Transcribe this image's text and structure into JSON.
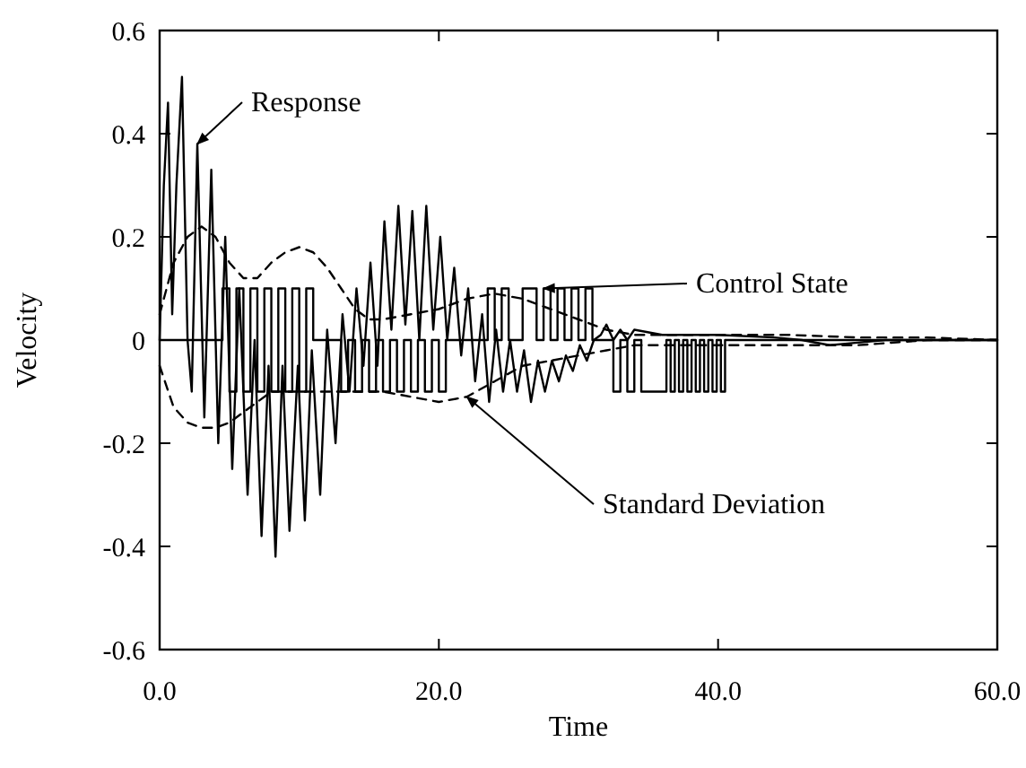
{
  "chart_data": {
    "type": "line",
    "xlabel": "Time",
    "ylabel": "Velocity",
    "xlim": [
      0,
      60
    ],
    "ylim": [
      -0.6,
      0.6
    ],
    "xticks": [
      {
        "value": 0,
        "label": "0.0"
      },
      {
        "value": 20,
        "label": "20.0"
      },
      {
        "value": 40,
        "label": "40.0"
      },
      {
        "value": 60,
        "label": "60.0"
      }
    ],
    "yticks": [
      -0.6,
      -0.4,
      -0.2,
      0,
      0.2,
      0.4,
      0.6
    ],
    "legend": "top",
    "series": [
      {
        "name": "Response",
        "color": "#000000",
        "line_style": "solid",
        "x": [
          0,
          0.3,
          0.6,
          0.9,
          1.2,
          1.6,
          2.0,
          2.3,
          2.7,
          3.2,
          3.7,
          4.2,
          4.7,
          5.2,
          5.7,
          6.3,
          6.8,
          7.3,
          7.8,
          8.3,
          8.8,
          9.3,
          9.9,
          10.4,
          10.9,
          11.5,
          12.0,
          12.6,
          13.1,
          13.6,
          14.1,
          14.6,
          15.1,
          15.6,
          16.1,
          16.6,
          17.1,
          17.6,
          18.1,
          18.6,
          19.1,
          19.6,
          20.1,
          20.6,
          21.1,
          21.6,
          22.1,
          22.6,
          23.1,
          23.6,
          24.1,
          24.6,
          25.1,
          25.6,
          26.1,
          26.6,
          27.1,
          27.6,
          28.1,
          28.6,
          29.1,
          29.6,
          30.1,
          30.6,
          31.1,
          31.6,
          32.0,
          32.5,
          33.0,
          33.5,
          34,
          36,
          40,
          44,
          46,
          48,
          50,
          52,
          56,
          60
        ],
        "values": [
          0,
          0.3,
          0.46,
          0.05,
          0.3,
          0.51,
          0.0,
          -0.1,
          0.38,
          -0.15,
          0.33,
          -0.2,
          0.2,
          -0.25,
          0.1,
          -0.3,
          0.0,
          -0.38,
          -0.05,
          -0.42,
          -0.05,
          -0.37,
          -0.05,
          -0.35,
          -0.02,
          -0.3,
          0.02,
          -0.2,
          0.05,
          -0.1,
          0.1,
          -0.05,
          0.15,
          -0.05,
          0.23,
          0.02,
          0.26,
          0.03,
          0.25,
          0.0,
          0.26,
          0.02,
          0.2,
          0.0,
          0.14,
          -0.03,
          0.1,
          -0.08,
          0.05,
          -0.12,
          0.02,
          -0.1,
          0.0,
          -0.1,
          -0.02,
          -0.12,
          -0.04,
          -0.1,
          -0.04,
          -0.08,
          -0.03,
          -0.06,
          -0.01,
          -0.04,
          0.0,
          0.01,
          0.03,
          0.0,
          0.02,
          0.0,
          0.02,
          0.01,
          0.01,
          0.005,
          0.0,
          -0.01,
          -0.005,
          0.0,
          0.0,
          0.0
        ]
      },
      {
        "name": "Control State",
        "type": "step",
        "color": "#000000",
        "line_style": "solid",
        "x": [
          0,
          4.5,
          5.0,
          5.5,
          6.0,
          6.5,
          7.0,
          7.5,
          8.0,
          8.5,
          9.0,
          9.5,
          10.0,
          10.5,
          11.0,
          13.0,
          13.5,
          14.0,
          14.5,
          15,
          15.5,
          16.0,
          16.5,
          17,
          17.5,
          18,
          18.5,
          19,
          19.5,
          20,
          20.5,
          23.5,
          24,
          24.5,
          25,
          26,
          27,
          27.5,
          28,
          28.5,
          29,
          29.5,
          30,
          30.5,
          31,
          32.5,
          33,
          33.5,
          34,
          34.5,
          36.3,
          36.6,
          36.9,
          37.2,
          37.5,
          37.8,
          38.1,
          38.4,
          38.7,
          39.0,
          39.3,
          39.6,
          39.9,
          40.2,
          40.5,
          60
        ],
        "values": [
          0,
          0.1,
          -0.1,
          0.1,
          -0.1,
          0.1,
          -0.1,
          0.1,
          -0.1,
          0.1,
          -0.1,
          0.1,
          -0.1,
          0.1,
          0,
          -0.1,
          0,
          -0.1,
          0,
          -0.1,
          0,
          -0.1,
          0,
          -0.1,
          0,
          -0.1,
          0,
          -0.1,
          0,
          -0.1,
          0,
          0.1,
          0,
          0.1,
          0,
          0.1,
          0,
          0.1,
          0,
          0.1,
          0,
          0.1,
          0,
          0.1,
          0,
          -0.1,
          0,
          -0.1,
          0,
          -0.1,
          0,
          -0.1,
          0,
          -0.1,
          0,
          -0.1,
          0,
          -0.1,
          0,
          -0.1,
          0,
          -0.1,
          0,
          -0.1,
          0,
          0
        ]
      },
      {
        "color": "#000000",
        "line_style": "dashed",
        "x": [
          0,
          1,
          2,
          3,
          4,
          5,
          6,
          7,
          8,
          9,
          10,
          11,
          12,
          13,
          14,
          15,
          16,
          18,
          20,
          22,
          24,
          26,
          28,
          30,
          32,
          34,
          36,
          40,
          45,
          50,
          55,
          60
        ],
        "values": [
          0.05,
          0.15,
          0.2,
          0.22,
          0.2,
          0.15,
          0.12,
          0.12,
          0.15,
          0.17,
          0.18,
          0.17,
          0.14,
          0.1,
          0.06,
          0.04,
          0.04,
          0.05,
          0.06,
          0.08,
          0.09,
          0.08,
          0.06,
          0.04,
          0.02,
          0.01,
          0.01,
          0.01,
          0.01,
          0.005,
          0.005,
          0.0
        ]
      },
      {
        "name": "Standard Deviation",
        "color": "#000000",
        "line_style": "dashed",
        "x": [
          0,
          1,
          2,
          3,
          4,
          5,
          6,
          7,
          8,
          9,
          10,
          11,
          12,
          13,
          14,
          15,
          16,
          18,
          20,
          22,
          24,
          26,
          28,
          30,
          32,
          34,
          36,
          40,
          45,
          50,
          55,
          60
        ],
        "values": [
          -0.05,
          -0.13,
          -0.16,
          -0.17,
          -0.17,
          -0.16,
          -0.14,
          -0.12,
          -0.1,
          -0.1,
          -0.1,
          -0.1,
          -0.1,
          -0.1,
          -0.1,
          -0.1,
          -0.1,
          -0.11,
          -0.12,
          -0.11,
          -0.08,
          -0.05,
          -0.04,
          -0.03,
          -0.02,
          -0.01,
          -0.01,
          -0.01,
          -0.01,
          -0.01,
          0,
          0
        ]
      }
    ]
  }
}
